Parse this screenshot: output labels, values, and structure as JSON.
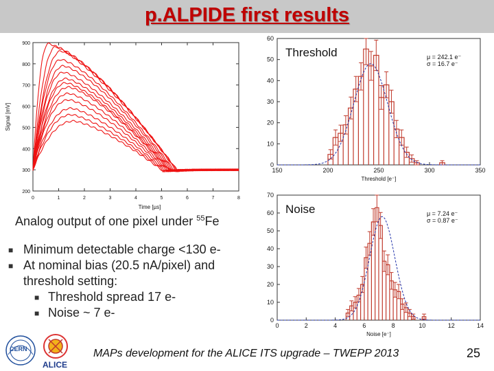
{
  "header": {
    "title": "p.ALPIDE first results"
  },
  "signal_plot": {
    "ylabel": "Signal [mV]",
    "xlabel": "Time [µs]",
    "caption_text": "Analog output of one pixel under ",
    "caption_sup": "55",
    "caption_tail": "Fe"
  },
  "bullets": [
    {
      "level": 1,
      "text": "Minimum detectable charge <130 e-"
    },
    {
      "level": 1,
      "text": "At nominal bias (20.5 nA/pixel) and"
    },
    {
      "level": 1,
      "text": "threshold setting:",
      "cont": true
    },
    {
      "level": 2,
      "text": "Threshold spread 17 e-"
    },
    {
      "level": 2,
      "text": "Noise ~ 7 e-"
    }
  ],
  "footer": {
    "text": "MAPs development for the ALICE ITS upgrade – TWEPP 2013",
    "page": "25"
  },
  "logos": {
    "cern": "CERN",
    "alice": "ALICE"
  },
  "colors": {
    "title": "#c00000",
    "signal": "#ee1111",
    "hist": "#c0392b",
    "fit": "#2233aa"
  },
  "chart_data": [
    {
      "type": "line",
      "xlabel": "Time [µs]",
      "ylabel": "Signal [mV]",
      "xlim": [
        0,
        8
      ],
      "ylim": [
        200,
        900
      ],
      "xticks": [
        0,
        1,
        2,
        3,
        4,
        5,
        6,
        7,
        8
      ],
      "yticks": [
        200,
        300,
        400,
        500,
        600,
        700,
        800,
        900
      ],
      "baseline": 300,
      "series": [
        {
          "peak": 895,
          "tpeak": 0.6
        },
        {
          "peak": 880,
          "tpeak": 0.9
        },
        {
          "peak": 860,
          "tpeak": 1.1
        },
        {
          "peak": 820,
          "tpeak": 1.1
        },
        {
          "peak": 790,
          "tpeak": 1.2
        },
        {
          "peak": 760,
          "tpeak": 1.2
        },
        {
          "peak": 730,
          "tpeak": 1.3
        },
        {
          "peak": 710,
          "tpeak": 1.3
        },
        {
          "peak": 690,
          "tpeak": 1.4
        },
        {
          "peak": 660,
          "tpeak": 1.4
        },
        {
          "peak": 630,
          "tpeak": 1.4
        },
        {
          "peak": 590,
          "tpeak": 1.5
        },
        {
          "peak": 560,
          "tpeak": 1.5
        },
        {
          "peak": 530,
          "tpeak": 1.6
        }
      ]
    },
    {
      "type": "bar",
      "title": "Threshold",
      "xlabel": "Threshold [e⁻]",
      "xlim": [
        150,
        350
      ],
      "ylim": [
        0,
        60
      ],
      "xticks": [
        150,
        200,
        250,
        300,
        350
      ],
      "yticks": [
        0,
        10,
        20,
        30,
        40,
        50,
        60
      ],
      "stats": {
        "mu": "μ = 242.1 e⁻",
        "sigma": "σ = 16.7 e⁻"
      },
      "fit": {
        "mean": 242.1,
        "sigma": 16.7,
        "amp": 48
      },
      "bin_width": 5,
      "bins": [
        [
          200,
          5
        ],
        [
          205,
          13
        ],
        [
          210,
          15
        ],
        [
          215,
          19
        ],
        [
          220,
          27
        ],
        [
          225,
          36
        ],
        [
          230,
          42
        ],
        [
          235,
          55
        ],
        [
          240,
          47
        ],
        [
          245,
          52
        ],
        [
          250,
          32
        ],
        [
          255,
          38
        ],
        [
          260,
          30
        ],
        [
          265,
          17
        ],
        [
          270,
          13
        ],
        [
          275,
          6
        ],
        [
          280,
          3
        ],
        [
          285,
          1
        ],
        [
          310,
          1
        ]
      ]
    },
    {
      "type": "bar",
      "title": "Noise",
      "xlabel": "Noise [e⁻]",
      "xlim": [
        0,
        14
      ],
      "ylim": [
        0,
        70
      ],
      "xticks": [
        0,
        2,
        4,
        6,
        8,
        10,
        12,
        14
      ],
      "yticks": [
        0,
        10,
        20,
        30,
        40,
        50,
        60,
        70
      ],
      "stats": {
        "mu": "μ = 7.24 e⁻",
        "sigma": "σ = 0.87 e⁻"
      },
      "fit": {
        "mean": 7.24,
        "sigma": 0.87,
        "amp": 58
      },
      "bin_width": 0.25,
      "bins": [
        [
          4.75,
          4
        ],
        [
          5.0,
          8
        ],
        [
          5.25,
          10
        ],
        [
          5.5,
          14
        ],
        [
          5.75,
          20
        ],
        [
          6.0,
          35
        ],
        [
          6.25,
          43
        ],
        [
          6.5,
          55
        ],
        [
          6.75,
          63
        ],
        [
          7.0,
          53
        ],
        [
          7.25,
          33
        ],
        [
          7.5,
          31
        ],
        [
          7.75,
          22
        ],
        [
          8.0,
          17
        ],
        [
          8.25,
          16
        ],
        [
          8.5,
          9
        ],
        [
          8.75,
          7
        ],
        [
          9.0,
          4
        ],
        [
          9.25,
          2
        ],
        [
          10.0,
          2
        ]
      ]
    }
  ]
}
